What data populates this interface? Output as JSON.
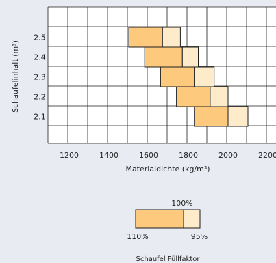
{
  "chart_data": {
    "type": "bar",
    "subtype": "floating-range",
    "xlabel": "Materialdichte (kg/m³)",
    "ylabel": "Schaufelinhalt (m³)",
    "x_ticks": [
      1200,
      1400,
      1600,
      1800,
      2000,
      2200
    ],
    "y_ticks": [
      "2.5",
      "2.4",
      "2.3",
      "2.2",
      "2.1"
    ],
    "xlim": [
      1000,
      2300
    ],
    "grid": true,
    "series_colors": {
      "fill_110": "#fcc97d",
      "fill_100": "#fdebc9",
      "outline": "#1e1e1e",
      "grid": "#1e1e1e",
      "background": "#e8ebf1",
      "plot_bg": "#ffffff"
    },
    "bars": [
      {
        "capacity": "2.5",
        "start": 1500,
        "fill_110_end": 1670,
        "fill_100_end": 1760
      },
      {
        "capacity": "2.4",
        "start": 1580,
        "fill_110_end": 1770,
        "fill_100_end": 1850
      },
      {
        "capacity": "2.3",
        "start": 1660,
        "fill_110_end": 1830,
        "fill_100_end": 1930
      },
      {
        "capacity": "2.2",
        "start": 1740,
        "fill_110_end": 1910,
        "fill_100_end": 2000
      },
      {
        "capacity": "2.1",
        "start": 1830,
        "fill_110_end": 2000,
        "fill_100_end": 2100
      }
    ]
  },
  "legend": {
    "title": "Schaufel Füllfaktor",
    "label_top": "100%",
    "label_left": "110%",
    "label_right": "95%"
  }
}
